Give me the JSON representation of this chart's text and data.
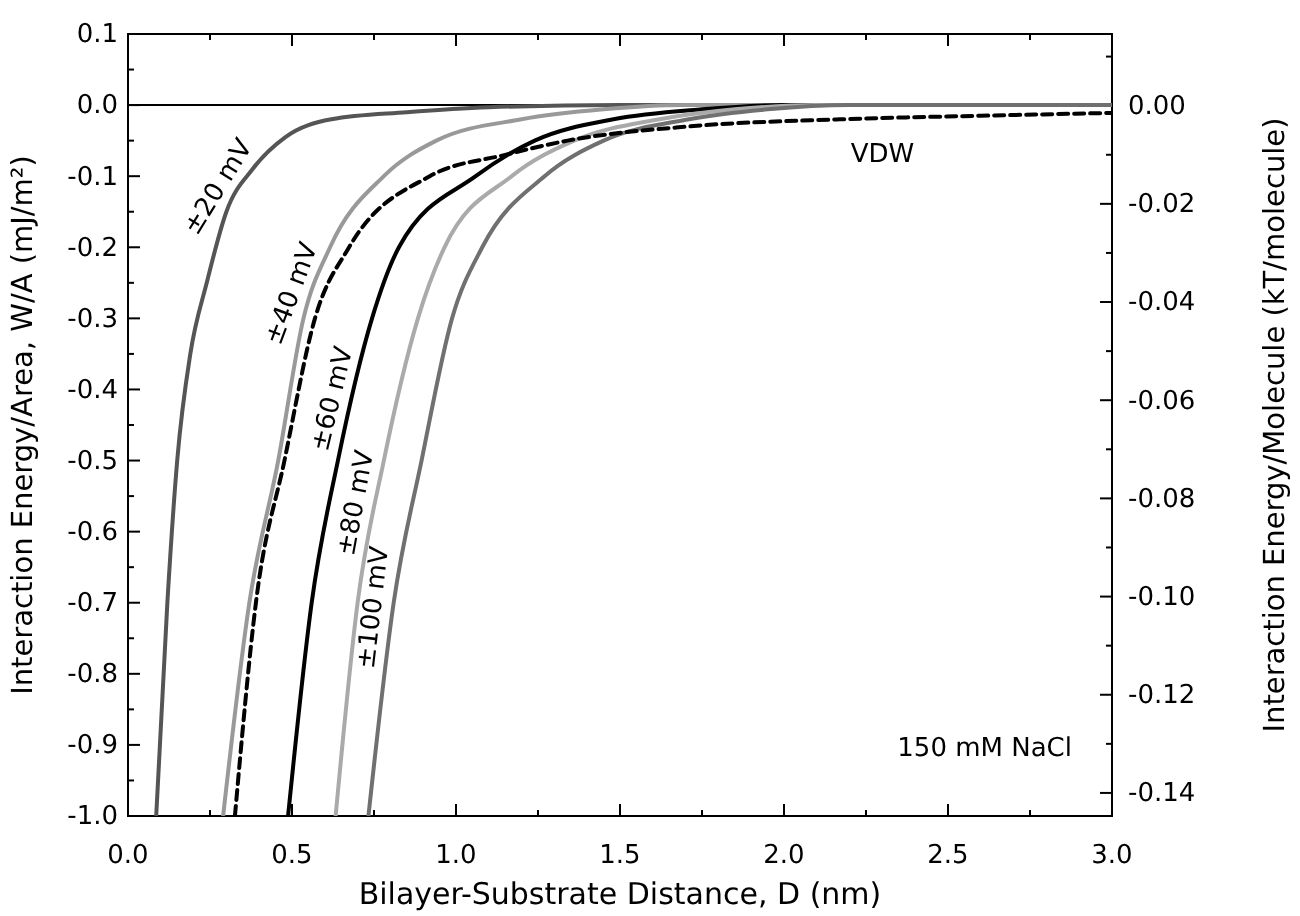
{
  "chart_data": {
    "type": "line",
    "xlabel": "Bilayer-Substrate Distance,  D (nm)",
    "ylabel": "Interaction Energy/Area, W/A (mJ/m²)",
    "y2label": "Interaction Energy/Molecule (kT/molecule)",
    "xlim": [
      0,
      3
    ],
    "ylim": [
      -1,
      0.1
    ],
    "y2lim": [
      -0.1447,
      0.0146
    ],
    "xticks": [
      {
        "value": 0,
        "label": "0.0"
      },
      {
        "value": 0.25,
        "label": null
      },
      0.5,
      {
        "value": 0.75,
        "label": null
      },
      {
        "value": 1,
        "label": "1.0"
      },
      {
        "value": 1.25,
        "label": null
      },
      1.5,
      {
        "value": 1.75,
        "label": null
      },
      {
        "value": 2,
        "label": "2.0"
      },
      {
        "value": 2.25,
        "label": null
      },
      2.5,
      {
        "value": 2.75,
        "label": null
      },
      {
        "value": 3,
        "label": "3.0"
      }
    ],
    "yticks": [
      {
        "value": -1,
        "label": "-1.0"
      },
      {
        "value": -0.95,
        "label": null
      },
      -0.9,
      {
        "value": -0.85,
        "label": null
      },
      -0.8,
      {
        "value": -0.75,
        "label": null
      },
      -0.7,
      {
        "value": -0.65,
        "label": null
      },
      -0.6,
      {
        "value": -0.55,
        "label": null
      },
      -0.5,
      {
        "value": -0.45,
        "label": null
      },
      -0.4,
      {
        "value": -0.35,
        "label": null
      },
      -0.3,
      {
        "value": -0.25,
        "label": null
      },
      -0.2,
      {
        "value": -0.15,
        "label": null
      },
      -0.1,
      {
        "value": -0.05,
        "label": null
      },
      {
        "value": 0,
        "label": "0.0"
      },
      {
        "value": 0.05,
        "label": null
      },
      0.1
    ],
    "y2ticks": [
      {
        "value": -0.14,
        "label": "-0.14"
      },
      {
        "value": -0.13,
        "label": null
      },
      {
        "value": -0.12,
        "label": "-0.12"
      },
      {
        "value": -0.11,
        "label": null
      },
      {
        "value": -0.1,
        "label": "-0.10"
      },
      {
        "value": -0.09,
        "label": null
      },
      {
        "value": -0.08,
        "label": "-0.08"
      },
      {
        "value": -0.07,
        "label": null
      },
      {
        "value": -0.06,
        "label": "-0.06"
      },
      {
        "value": -0.05,
        "label": null
      },
      {
        "value": -0.04,
        "label": "-0.04"
      },
      {
        "value": -0.03,
        "label": null
      },
      {
        "value": -0.02,
        "label": "-0.02"
      },
      {
        "value": -0.01,
        "label": null
      },
      {
        "value": 0,
        "label": "0.00"
      },
      {
        "value": 0.01,
        "label": null
      }
    ],
    "ref_lines": [
      {
        "axis": "y",
        "value": 0,
        "color": "#000000"
      }
    ],
    "annotations": [
      "150 mM NaCl"
    ],
    "grid": false,
    "legend": false,
    "marker": "none",
    "series": [
      {
        "name": "±20 mV",
        "color": "#555555",
        "x": [
          0.086,
          0.12,
          0.15,
          0.19,
          0.24,
          0.3,
          0.38,
          0.48,
          0.62,
          0.85,
          1.1,
          1.5,
          3
        ],
        "values": [
          -1,
          -0.7,
          -0.5,
          -0.35,
          -0.25,
          -0.15,
          -0.09,
          -0.045,
          -0.02,
          -0.01,
          -0.003,
          0,
          0
        ]
      },
      {
        "name": "±40 mV",
        "color": "#999999",
        "x": [
          0.29,
          0.37,
          0.458,
          0.535,
          0.616,
          0.78,
          0.94,
          1.2,
          1.45,
          1.7,
          3
        ],
        "values": [
          -1,
          -0.7,
          -0.5,
          -0.3,
          -0.2,
          -0.1,
          -0.05,
          -0.02,
          -0.006,
          0,
          0
        ]
      },
      {
        "name": "±60 mV",
        "color": "#000000",
        "x": [
          0.488,
          0.56,
          0.64,
          0.744,
          0.826,
          1.06,
          1.24,
          1.48,
          1.75,
          2.0,
          3
        ],
        "values": [
          -1,
          -0.7,
          -0.5,
          -0.3,
          -0.2,
          -0.1,
          -0.05,
          -0.02,
          -0.006,
          0,
          0
        ]
      },
      {
        "name": "±80 mV",
        "color": "#aaaaaa",
        "x": [
          0.633,
          0.7,
          0.78,
          0.884,
          0.965,
          1.17,
          1.36,
          1.62,
          1.85,
          2.1,
          3
        ],
        "values": [
          -1,
          -0.7,
          -0.5,
          -0.3,
          -0.2,
          -0.1,
          -0.05,
          -0.02,
          -0.006,
          0,
          0
        ]
      },
      {
        "name": "±100 mV",
        "color": "#707070",
        "x": [
          0.733,
          0.81,
          0.895,
          0.988,
          1.08,
          1.27,
          1.45,
          1.71,
          1.95,
          2.2,
          3
        ],
        "values": [
          -1,
          -0.7,
          -0.5,
          -0.3,
          -0.2,
          -0.1,
          -0.05,
          -0.02,
          -0.006,
          0,
          0
        ]
      },
      {
        "name": "VDW",
        "color": "#000000",
        "line_style": "dashed",
        "x": [
          0.326,
          0.39,
          0.477,
          0.57,
          0.674,
          0.92,
          1.15,
          1.34,
          1.71,
          2.17,
          2.6,
          3
        ],
        "values": [
          -1,
          -0.7,
          -0.5,
          -0.3,
          -0.2,
          -0.1,
          -0.07,
          -0.05,
          -0.03,
          -0.02,
          -0.015,
          -0.011
        ]
      }
    ]
  }
}
